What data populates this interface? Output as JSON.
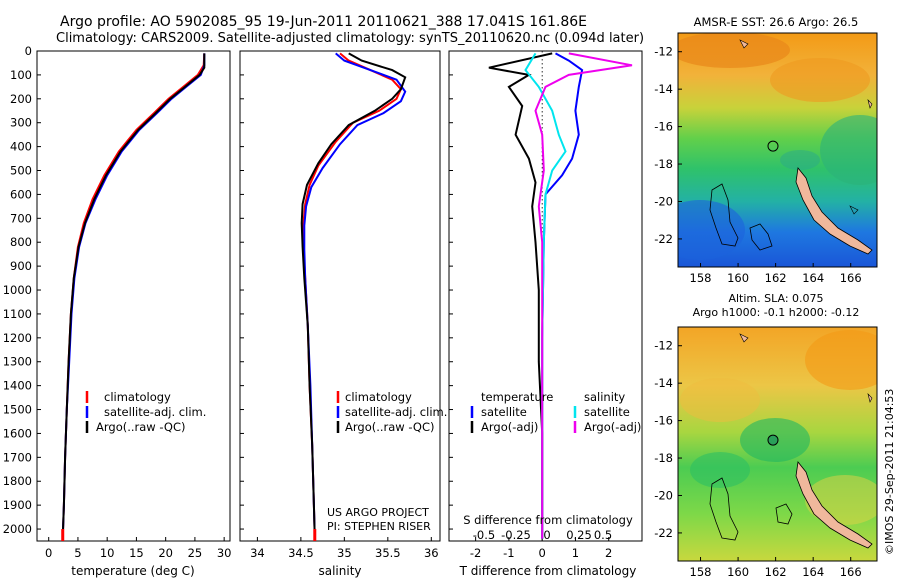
{
  "header": {
    "title_line1": "Argo profile: AO 5902085_95 19-Jun-2011 20110621_388 17.041S 161.86E",
    "title_line2": "Climatology: CARS2009. Satellite-adjusted climatology: synTS_20110620.nc (0.094d later)"
  },
  "credit": {
    "line1": "US ARGO PROJECT",
    "line2": "PI: STEPHEN RISER",
    "imos": "©IMOS 29-Sep-2011 21:04:53"
  },
  "colors": {
    "climatology": "#ff0000",
    "satellite": "#0000ff",
    "argo": "#000000",
    "satellite_salinity": "#00e5ee",
    "argo_salinity": "#ee00ee"
  },
  "chart_data": [
    {
      "type": "line",
      "id": "temperature",
      "xlabel": "temperature (deg C)",
      "xlim": [
        -2,
        31
      ],
      "ylim": [
        2050,
        0
      ],
      "xticks": [
        0,
        5,
        10,
        15,
        20,
        25,
        30
      ],
      "yticks": [
        0,
        100,
        200,
        300,
        400,
        500,
        600,
        700,
        800,
        900,
        1000,
        1100,
        1200,
        1300,
        1400,
        1500,
        1600,
        1700,
        1800,
        1900,
        2000
      ],
      "legend": [
        "climatology",
        "satellite-adj. clim.",
        "Argo(..raw -QC)"
      ],
      "series": [
        {
          "name": "climatology",
          "color": "#ff0000",
          "points": [
            [
              26.6,
              10
            ],
            [
              26.5,
              60
            ],
            [
              25.5,
              100
            ],
            [
              23,
              150
            ],
            [
              20.5,
              200
            ],
            [
              18,
              260
            ],
            [
              15,
              330
            ],
            [
              12,
              420
            ],
            [
              9.5,
              520
            ],
            [
              7.5,
              620
            ],
            [
              6,
              720
            ],
            [
              5,
              820
            ],
            [
              4.3,
              950
            ],
            [
              3.8,
              1100
            ],
            [
              3.4,
              1300
            ],
            [
              3.1,
              1500
            ],
            [
              2.8,
              1700
            ],
            [
              2.6,
              1900
            ],
            [
              2.4,
              2040
            ]
          ]
        },
        {
          "name": "satellite-adj. clim.",
          "color": "#0000ff",
          "points": [
            [
              26.6,
              10
            ],
            [
              26.6,
              60
            ],
            [
              26,
              100
            ],
            [
              23.5,
              150
            ],
            [
              21,
              200
            ],
            [
              18.5,
              260
            ],
            [
              15.5,
              330
            ],
            [
              12.5,
              420
            ],
            [
              10,
              520
            ],
            [
              8,
              620
            ],
            [
              6.3,
              720
            ],
            [
              5.2,
              820
            ],
            [
              4.4,
              950
            ],
            [
              3.9,
              1100
            ],
            [
              3.5,
              1300
            ],
            [
              3.1,
              1500
            ],
            [
              2.8,
              1700
            ],
            [
              2.6,
              1900
            ],
            [
              2.4,
              2040
            ]
          ]
        },
        {
          "name": "Argo(..raw -QC)",
          "color": "#000000",
          "points": [
            [
              26.6,
              10
            ],
            [
              26.6,
              70
            ],
            [
              25.8,
              100
            ],
            [
              23.3,
              150
            ],
            [
              20.8,
              200
            ],
            [
              18.3,
              260
            ],
            [
              15.3,
              330
            ],
            [
              12.3,
              420
            ],
            [
              9.8,
              520
            ],
            [
              7.8,
              620
            ],
            [
              6.2,
              720
            ],
            [
              5.1,
              820
            ],
            [
              4.3,
              950
            ],
            [
              3.8,
              1100
            ],
            [
              3.4,
              1300
            ],
            [
              3.1,
              1500
            ],
            [
              2.8,
              1700
            ],
            [
              2.6,
              1900
            ],
            [
              2.4,
              2040
            ]
          ]
        }
      ]
    },
    {
      "type": "line",
      "id": "salinity",
      "xlabel": "salinity",
      "xlim": [
        33.8,
        36.1
      ],
      "ylim": [
        2050,
        0
      ],
      "xticks": [
        34,
        34.5,
        35,
        35.5,
        36
      ],
      "legend": [
        "climatology",
        "satellite-adj. clim.",
        "Argo(..raw -QC)"
      ],
      "series": [
        {
          "name": "climatology",
          "color": "#ff0000",
          "points": [
            [
              34.95,
              10
            ],
            [
              35.05,
              40
            ],
            [
              35.3,
              80
            ],
            [
              35.55,
              120
            ],
            [
              35.65,
              160
            ],
            [
              35.6,
              200
            ],
            [
              35.4,
              250
            ],
            [
              35.1,
              300
            ],
            [
              34.9,
              380
            ],
            [
              34.7,
              480
            ],
            [
              34.6,
              560
            ],
            [
              34.55,
              640
            ],
            [
              34.53,
              720
            ],
            [
              34.53,
              820
            ],
            [
              34.55,
              950
            ],
            [
              34.58,
              1150
            ],
            [
              34.6,
              1400
            ],
            [
              34.63,
              1650
            ],
            [
              34.65,
              1900
            ],
            [
              34.66,
              2040
            ]
          ]
        },
        {
          "name": "satellite-adj. clim.",
          "color": "#0000ff",
          "points": [
            [
              34.9,
              10
            ],
            [
              35.0,
              40
            ],
            [
              35.3,
              80
            ],
            [
              35.6,
              120
            ],
            [
              35.7,
              170
            ],
            [
              35.65,
              210
            ],
            [
              35.45,
              260
            ],
            [
              35.15,
              310
            ],
            [
              34.95,
              390
            ],
            [
              34.75,
              490
            ],
            [
              34.62,
              570
            ],
            [
              34.56,
              650
            ],
            [
              34.54,
              730
            ],
            [
              34.54,
              830
            ],
            [
              34.55,
              950
            ],
            [
              34.58,
              1150
            ],
            [
              34.61,
              1400
            ],
            [
              34.63,
              1650
            ],
            [
              34.65,
              1900
            ],
            [
              34.66,
              2040
            ]
          ]
        },
        {
          "name": "Argo(..raw -QC)",
          "color": "#000000",
          "points": [
            [
              35.05,
              10
            ],
            [
              35.2,
              40
            ],
            [
              35.55,
              80
            ],
            [
              35.7,
              110
            ],
            [
              35.65,
              160
            ],
            [
              35.55,
              200
            ],
            [
              35.35,
              250
            ],
            [
              35.05,
              310
            ],
            [
              34.85,
              390
            ],
            [
              34.7,
              470
            ],
            [
              34.57,
              560
            ],
            [
              34.52,
              640
            ],
            [
              34.51,
              720
            ],
            [
              34.52,
              820
            ],
            [
              34.54,
              950
            ],
            [
              34.58,
              1150
            ],
            [
              34.6,
              1400
            ],
            [
              34.63,
              1650
            ],
            [
              34.65,
              1900
            ],
            [
              34.66,
              2040
            ]
          ]
        }
      ]
    },
    {
      "type": "line",
      "id": "difference",
      "xlabel_top": "S difference from climatology",
      "xlabel": "T difference from climatology",
      "xlim": [
        -2.8,
        3.0
      ],
      "ylim": [
        2050,
        0
      ],
      "xticks_T": [
        -2,
        -1,
        0,
        1,
        2
      ],
      "xticks_S_labels": [
        "-0.5",
        "-0.25",
        "0",
        "0.25",
        "0.5"
      ],
      "legend_temperature_title": "temperature",
      "legend_salinity_title": "salinity",
      "legend_temperature": [
        "satellite",
        "Argo(-adj)"
      ],
      "legend_salinity": [
        "satellite",
        "Argo(-adj)"
      ],
      "series": [
        {
          "name": "T satellite",
          "color": "#0000ff",
          "points": [
            [
              0.4,
              10
            ],
            [
              0.8,
              40
            ],
            [
              1.2,
              80
            ],
            [
              1.1,
              150
            ],
            [
              1.0,
              250
            ],
            [
              1.1,
              350
            ],
            [
              0.9,
              450
            ],
            [
              0.6,
              520
            ],
            [
              0.1,
              600
            ],
            [
              0.05,
              800
            ],
            [
              0.0,
              1200
            ],
            [
              0.0,
              1600
            ],
            [
              0.0,
              2040
            ]
          ]
        },
        {
          "name": "T Argo(-adj)",
          "color": "#000000",
          "points": [
            [
              0.3,
              10
            ],
            [
              -1.6,
              70
            ],
            [
              -0.4,
              100
            ],
            [
              -1.0,
              150
            ],
            [
              -0.6,
              230
            ],
            [
              -0.8,
              350
            ],
            [
              -0.4,
              450
            ],
            [
              -0.2,
              550
            ],
            [
              -0.3,
              650
            ],
            [
              -0.2,
              800
            ],
            [
              -0.1,
              1000
            ],
            [
              -0.1,
              1300
            ],
            [
              0.0,
              1600
            ],
            [
              0.0,
              2040
            ]
          ]
        },
        {
          "name": "S satellite",
          "color": "#00e5ee",
          "points": [
            [
              -0.2,
              10
            ],
            [
              -0.5,
              80
            ],
            [
              -0.1,
              150
            ],
            [
              0.3,
              250
            ],
            [
              0.5,
              350
            ],
            [
              0.7,
              420
            ],
            [
              0.3,
              500
            ],
            [
              0.1,
              600
            ],
            [
              0.05,
              800
            ],
            [
              0.0,
              1200
            ],
            [
              0.0,
              1600
            ],
            [
              0.0,
              2040
            ]
          ]
        },
        {
          "name": "S Argo(-adj)",
          "color": "#ee00ee",
          "points": [
            [
              0.8,
              10
            ],
            [
              2.7,
              60
            ],
            [
              0.8,
              100
            ],
            [
              0.1,
              150
            ],
            [
              -0.2,
              250
            ],
            [
              0.0,
              350
            ],
            [
              0.05,
              500
            ],
            [
              -0.1,
              650
            ],
            [
              0.0,
              800
            ],
            [
              0.0,
              1200
            ],
            [
              0.0,
              1600
            ],
            [
              0.0,
              2040
            ]
          ]
        }
      ]
    },
    {
      "type": "heatmap",
      "id": "sst_map",
      "title": "AMSR-E SST: 26.6 Argo: 26.5",
      "xlim": [
        156.8,
        167.4
      ],
      "ylim": [
        -23.5,
        -11
      ],
      "xticks": [
        158,
        160,
        162,
        164,
        166
      ],
      "yticks": [
        -12,
        -14,
        -16,
        -18,
        -20,
        -22
      ],
      "argo_position": [
        161.86,
        -17.04
      ]
    },
    {
      "type": "heatmap",
      "id": "sla_map",
      "title_line1": "Altim. SLA: 0.075",
      "title_line2": "Argo h1000: -0.1 h2000: -0.12",
      "xlim": [
        156.8,
        167.4
      ],
      "ylim": [
        -23.5,
        -11
      ],
      "xticks": [
        158,
        160,
        162,
        164,
        166
      ],
      "yticks": [
        -12,
        -14,
        -16,
        -18,
        -20,
        -22
      ],
      "argo_position": [
        161.86,
        -17.04
      ]
    }
  ]
}
